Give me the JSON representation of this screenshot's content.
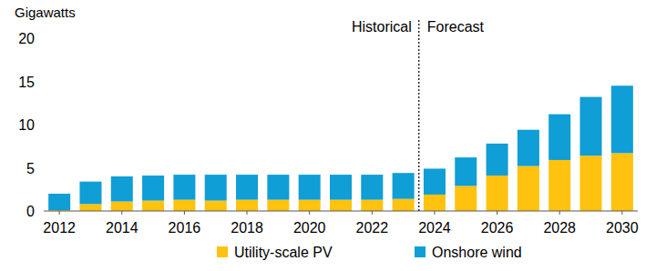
{
  "chart_data": {
    "type": "bar",
    "stacked": true,
    "y_label": "Gigawatts",
    "x": [
      2012,
      2013,
      2014,
      2015,
      2016,
      2017,
      2018,
      2019,
      2020,
      2021,
      2022,
      2023,
      2024,
      2025,
      2026,
      2027,
      2028,
      2029,
      2030
    ],
    "series": [
      {
        "name": "Utility-scale PV",
        "color": "#ffc20e",
        "values": [
          0.1,
          0.8,
          1.1,
          1.2,
          1.3,
          1.2,
          1.3,
          1.3,
          1.3,
          1.3,
          1.3,
          1.4,
          1.9,
          2.9,
          4.1,
          5.2,
          5.9,
          6.4,
          6.7
        ]
      },
      {
        "name": "Onshore wind",
        "color": "#0f9ed5",
        "values": [
          1.9,
          2.6,
          2.9,
          2.9,
          2.9,
          3.0,
          2.9,
          2.9,
          2.9,
          2.9,
          2.9,
          3.0,
          3.0,
          3.3,
          3.7,
          4.2,
          5.3,
          6.8,
          7.8
        ]
      }
    ],
    "xlim": [
      2011.5,
      2030.5
    ],
    "xticks": [
      2012,
      2014,
      2016,
      2018,
      2020,
      2022,
      2024,
      2026,
      2028,
      2030
    ],
    "ylim": [
      0,
      20
    ],
    "yticks": [
      0,
      5,
      10,
      15,
      20
    ],
    "grid": false,
    "legend": "bottom",
    "annotations": [
      {
        "text": "Historical",
        "x": 2023.5
      },
      {
        "text": "Forecast",
        "x": 2023.5
      }
    ]
  }
}
